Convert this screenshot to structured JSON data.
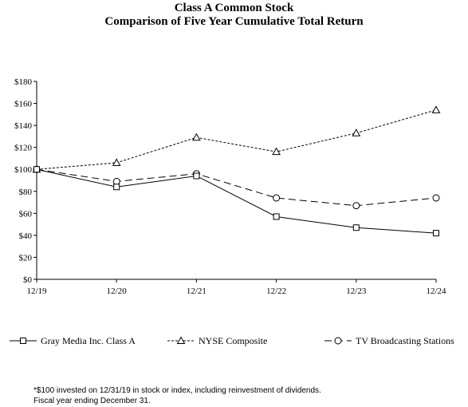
{
  "chart_data": {
    "type": "line",
    "title": "Class A Common Stock",
    "subtitle": "Comparison of Five Year Cumulative Total Return",
    "categories": [
      "12/19",
      "12/20",
      "12/21",
      "12/22",
      "12/23",
      "12/24"
    ],
    "y_tick_labels": [
      "$0",
      "$20",
      "$40",
      "$60",
      "$80",
      "$100",
      "$120",
      "$140",
      "$160",
      "$180"
    ],
    "ylim": [
      0,
      180
    ],
    "grid": false,
    "legend_position": "bottom",
    "series": [
      {
        "name": "Gray Media Inc. Class A",
        "marker": "square",
        "dash": "solid",
        "values": [
          100,
          84,
          94,
          57,
          47,
          42
        ]
      },
      {
        "name": "NYSE Composite",
        "marker": "triangle",
        "dash": "dotted",
        "values": [
          100,
          106,
          129,
          116,
          133,
          154
        ]
      },
      {
        "name": "TV Broadcasting Stations",
        "marker": "circle",
        "dash": "dashed",
        "values": [
          100,
          89,
          96,
          74,
          67,
          74
        ]
      }
    ],
    "footnotes": [
      "*$100 invested on 12/31/19 in stock or index, including reinvestment of dividends.",
      "Fiscal year ending December 31."
    ]
  }
}
